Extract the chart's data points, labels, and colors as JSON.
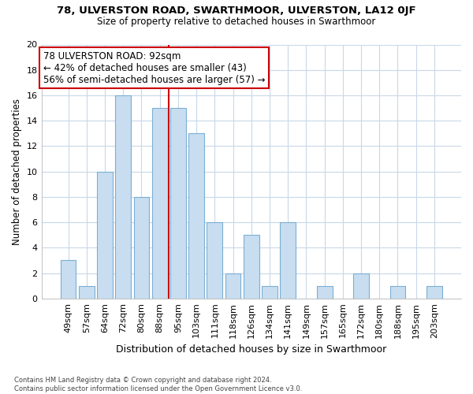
{
  "title1": "78, ULVERSTON ROAD, SWARTHMOOR, ULVERSTON, LA12 0JF",
  "title2": "Size of property relative to detached houses in Swarthmoor",
  "xlabel": "Distribution of detached houses by size in Swarthmoor",
  "ylabel": "Number of detached properties",
  "categories": [
    "49sqm",
    "57sqm",
    "64sqm",
    "72sqm",
    "80sqm",
    "88sqm",
    "95sqm",
    "103sqm",
    "111sqm",
    "118sqm",
    "126sqm",
    "134sqm",
    "141sqm",
    "149sqm",
    "157sqm",
    "165sqm",
    "172sqm",
    "180sqm",
    "188sqm",
    "195sqm",
    "203sqm"
  ],
  "values": [
    3,
    1,
    10,
    16,
    8,
    15,
    15,
    13,
    6,
    2,
    5,
    1,
    6,
    0,
    1,
    0,
    2,
    0,
    1,
    0,
    1
  ],
  "bar_color": "#c8ddf0",
  "bar_edge_color": "#7bafd4",
  "vline_x": 5.5,
  "vline_color": "#cc0000",
  "annotation_text": "78 ULVERSTON ROAD: 92sqm\n← 42% of detached houses are smaller (43)\n56% of semi-detached houses are larger (57) →",
  "annotation_box_facecolor": "#ffffff",
  "annotation_box_edgecolor": "#cc0000",
  "ylim": [
    0,
    20
  ],
  "yticks": [
    0,
    2,
    4,
    6,
    8,
    10,
    12,
    14,
    16,
    18,
    20
  ],
  "footnote": "Contains HM Land Registry data © Crown copyright and database right 2024.\nContains public sector information licensed under the Open Government Licence v3.0.",
  "bg_color": "#ffffff",
  "plot_bg_color": "#ffffff",
  "grid_color": "#c8d8e8"
}
